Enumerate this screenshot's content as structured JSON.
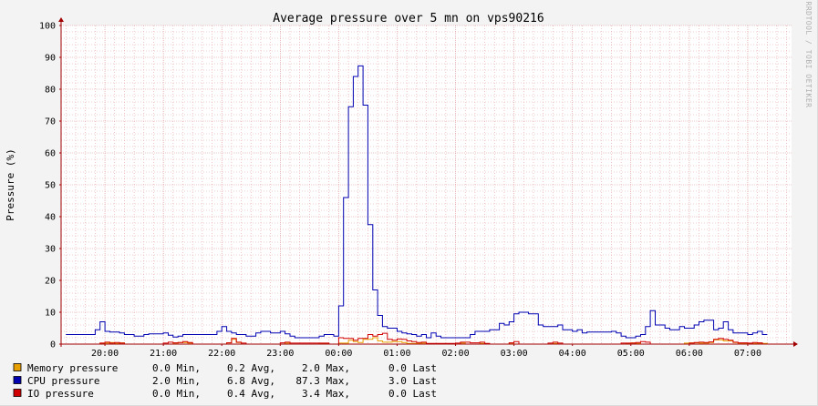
{
  "watermark": "RRDTOOL / TOBI OETIKER",
  "colors": {
    "canvas": "#ffffff",
    "background": "#f3f3f3",
    "grid_minor": "#e6a0a0",
    "grid_major": "#d99090",
    "axis": "#a00000",
    "memory": "#e8a000",
    "cpu": "#0000b0",
    "io": "#d00000"
  },
  "chart_data": {
    "type": "line",
    "title": "Average pressure over 5 mn on vps90216",
    "xlabel": "",
    "ylabel": "Pressure (%)",
    "ylim": [
      0,
      100
    ],
    "yticks": [
      0,
      10,
      20,
      30,
      40,
      50,
      60,
      70,
      80,
      90,
      100
    ],
    "grid": true,
    "legend_position": "bottom-left",
    "x_unit": "hours",
    "x_start": "19:20",
    "xlim": [
      19.25,
      7.75
    ],
    "xticks": [
      "20:00",
      "21:00",
      "22:00",
      "23:00",
      "00:00",
      "01:00",
      "02:00",
      "03:00",
      "04:00",
      "05:00",
      "06:00",
      "07:00"
    ],
    "series": [
      {
        "name": "Memory pressure",
        "color": "#e8a000",
        "stats": {
          "min": "0.0",
          "avg": "0.2",
          "max": "2.0",
          "last": "0.0"
        },
        "x": [
          "19:20",
          "19:55",
          "20:05",
          "20:10",
          "20:15",
          "20:20",
          "21:10",
          "21:15",
          "21:25",
          "21:30",
          "22:05",
          "22:10",
          "22:15",
          "22:20",
          "23:05",
          "23:10",
          "23:40",
          "23:50",
          "00:00",
          "00:10",
          "00:15",
          "00:20",
          "00:25",
          "00:35",
          "00:40",
          "00:45",
          "00:55",
          "01:05",
          "01:10",
          "01:25",
          "01:30",
          "02:05",
          "02:10",
          "02:25",
          "02:30",
          "02:55",
          "03:00",
          "03:40",
          "03:45",
          "04:55",
          "05:00",
          "05:05",
          "05:10",
          "05:55",
          "06:00",
          "06:10",
          "06:20",
          "06:25",
          "06:35",
          "06:45",
          "06:50",
          "07:20"
        ],
        "values": [
          0.0,
          0.3,
          0.5,
          0.2,
          0.4,
          0.0,
          0.3,
          0.5,
          0.3,
          0.0,
          0.4,
          1.5,
          0.5,
          0.0,
          0.3,
          0.0,
          0.2,
          0.0,
          0.3,
          1.2,
          0.8,
          0.5,
          1.5,
          2.0,
          1.0,
          0.6,
          0.8,
          0.5,
          0.2,
          0.3,
          0.0,
          0.3,
          0.0,
          0.2,
          0.0,
          0.3,
          0.0,
          0.2,
          0.0,
          0.2,
          0.4,
          0.2,
          0.0,
          0.3,
          0.4,
          0.3,
          0.5,
          1.3,
          1.0,
          0.5,
          0.2,
          0.0
        ]
      },
      {
        "name": "CPU pressure",
        "color": "#0000b0",
        "stats": {
          "min": "2.0",
          "avg": "6.8",
          "max": "87.3",
          "last": "3.0"
        },
        "x": [
          "19:20",
          "19:50",
          "19:55",
          "20:00",
          "20:05",
          "20:15",
          "20:20",
          "20:30",
          "20:40",
          "20:45",
          "21:00",
          "21:05",
          "21:10",
          "21:15",
          "21:20",
          "21:25",
          "21:30",
          "21:55",
          "22:00",
          "22:05",
          "22:10",
          "22:15",
          "22:25",
          "22:35",
          "22:40",
          "22:50",
          "22:55",
          "23:00",
          "23:05",
          "23:10",
          "23:15",
          "23:40",
          "23:45",
          "23:50",
          "23:55",
          "00:00",
          "00:05",
          "00:10",
          "00:15",
          "00:20",
          "00:25",
          "00:30",
          "00:35",
          "00:40",
          "00:45",
          "00:50",
          "01:00",
          "01:05",
          "01:10",
          "01:15",
          "01:20",
          "01:25",
          "01:30",
          "01:35",
          "01:40",
          "01:45",
          "02:00",
          "02:15",
          "02:20",
          "02:30",
          "02:35",
          "02:45",
          "02:50",
          "02:55",
          "03:00",
          "03:05",
          "03:15",
          "03:25",
          "03:30",
          "03:45",
          "03:50",
          "04:00",
          "04:05",
          "04:10",
          "04:15",
          "04:40",
          "04:45",
          "04:50",
          "04:55",
          "05:00",
          "05:05",
          "05:10",
          "05:15",
          "05:20",
          "05:25",
          "05:35",
          "05:40",
          "05:50",
          "05:55",
          "06:05",
          "06:10",
          "06:15",
          "06:20",
          "06:25",
          "06:30",
          "06:35",
          "06:40",
          "06:45",
          "07:00",
          "07:05",
          "07:10",
          "07:15"
        ],
        "values": [
          3.0,
          4.5,
          7.0,
          4.0,
          3.8,
          3.5,
          3.0,
          2.5,
          3.0,
          3.2,
          3.5,
          2.8,
          2.2,
          2.5,
          3.0,
          3.0,
          3.0,
          4.0,
          5.5,
          4.0,
          3.5,
          3.0,
          2.5,
          3.5,
          4.0,
          3.5,
          3.5,
          4.0,
          3.2,
          2.5,
          2.0,
          2.5,
          3.0,
          3.0,
          2.5,
          12.0,
          46.0,
          74.5,
          84.0,
          87.3,
          75.0,
          37.5,
          17.0,
          9.0,
          5.5,
          5.0,
          4.0,
          3.5,
          3.2,
          3.0,
          2.5,
          3.0,
          2.0,
          3.5,
          2.5,
          2.0,
          2.0,
          3.0,
          4.0,
          4.0,
          4.5,
          6.5,
          6.0,
          7.0,
          9.5,
          10.0,
          9.5,
          6.0,
          5.5,
          6.0,
          4.5,
          4.0,
          4.5,
          3.5,
          3.8,
          4.0,
          3.5,
          2.5,
          2.0,
          2.0,
          2.5,
          3.0,
          5.5,
          10.5,
          6.0,
          5.0,
          4.5,
          5.5,
          5.0,
          6.0,
          7.0,
          7.5,
          7.5,
          4.5,
          5.0,
          7.0,
          4.5,
          3.5,
          3.0,
          3.5,
          4.0,
          3.0
        ]
      },
      {
        "name": "IO pressure",
        "color": "#d00000",
        "stats": {
          "min": "0.0",
          "avg": "0.4",
          "max": "3.4",
          "last": "0.0"
        },
        "x": [
          "19:20",
          "19:55",
          "20:00",
          "20:05",
          "20:10",
          "20:15",
          "20:20",
          "21:00",
          "21:05",
          "21:10",
          "21:15",
          "21:20",
          "21:25",
          "21:30",
          "22:05",
          "22:10",
          "22:15",
          "22:20",
          "22:25",
          "23:00",
          "23:05",
          "23:10",
          "23:50",
          "00:00",
          "00:05",
          "00:15",
          "00:20",
          "00:30",
          "00:35",
          "00:40",
          "00:45",
          "00:50",
          "00:55",
          "01:00",
          "01:05",
          "01:10",
          "01:15",
          "01:20",
          "01:25",
          "01:30",
          "02:00",
          "02:05",
          "02:15",
          "02:25",
          "02:30",
          "02:35",
          "02:55",
          "03:00",
          "03:05",
          "03:35",
          "03:40",
          "03:45",
          "03:50",
          "04:50",
          "05:05",
          "05:10",
          "05:15",
          "05:20",
          "06:00",
          "06:05",
          "06:10",
          "06:15",
          "06:20",
          "06:25",
          "06:30",
          "06:35",
          "06:40",
          "06:45",
          "06:50",
          "07:00",
          "07:05",
          "07:10",
          "07:15"
        ],
        "values": [
          0.0,
          0.3,
          0.6,
          0.3,
          0.5,
          0.3,
          0.0,
          0.3,
          0.6,
          0.4,
          0.5,
          0.8,
          0.5,
          0.0,
          0.4,
          1.8,
          0.6,
          0.3,
          0.0,
          0.4,
          0.6,
          0.3,
          0.0,
          2.0,
          1.8,
          1.2,
          1.8,
          3.0,
          2.5,
          3.0,
          3.4,
          1.5,
          1.2,
          1.6,
          1.5,
          1.0,
          0.8,
          0.5,
          0.6,
          0.2,
          0.3,
          0.6,
          0.4,
          0.6,
          0.2,
          0.0,
          0.4,
          0.8,
          0.0,
          0.3,
          0.6,
          0.3,
          0.0,
          0.3,
          0.5,
          0.8,
          0.6,
          0.0,
          0.3,
          0.5,
          0.6,
          0.5,
          0.7,
          1.5,
          1.8,
          1.5,
          1.2,
          0.6,
          0.4,
          0.3,
          0.5,
          0.4,
          0.0
        ]
      }
    ]
  },
  "legend_rows": [
    {
      "name": "Memory pressure",
      "min": "0.0 Min,",
      "avg": "0.2 Avg,",
      "max": "2.0 Max,",
      "last": "0.0 Last"
    },
    {
      "name": "CPU pressure",
      "min": "2.0 Min,",
      "avg": "6.8 Avg,",
      "max": "87.3 Max,",
      "last": "3.0 Last"
    },
    {
      "name": "IO pressure",
      "min": "0.0 Min,",
      "avg": "0.4 Avg,",
      "max": "3.4 Max,",
      "last": "0.0 Last"
    }
  ]
}
